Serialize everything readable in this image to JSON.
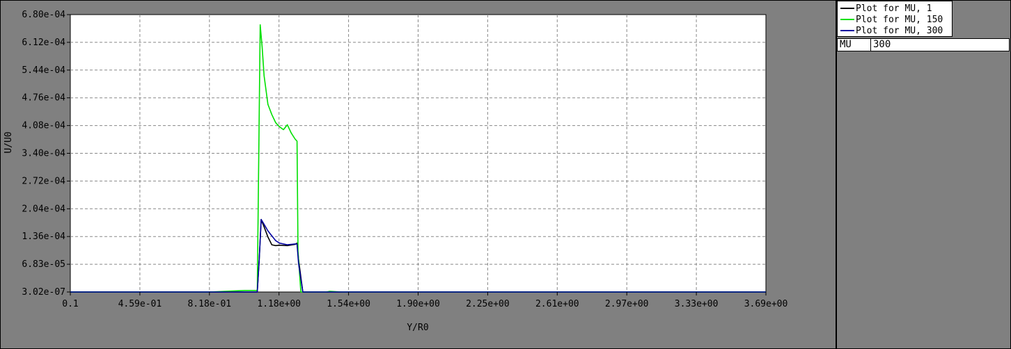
{
  "chart_data": {
    "type": "line",
    "xlabel": "Y/R0",
    "ylabel": "U/U0",
    "xlim": [
      0.1,
      3.69
    ],
    "ylim": [
      3.02e-07,
      0.00068
    ],
    "grid": true,
    "legend_position": "outside-top-right",
    "x_tick_labels": [
      "0.1",
      "4.59e-01",
      "8.18e-01",
      "1.18e+00",
      "1.54e+00",
      "1.90e+00",
      "2.25e+00",
      "2.61e+00",
      "2.97e+00",
      "3.33e+00",
      "3.69e+00"
    ],
    "y_tick_labels": [
      "6.80e-04",
      "6.12e-04",
      "5.44e-04",
      "4.76e-04",
      "4.08e-04",
      "3.40e-04",
      "2.72e-04",
      "2.04e-04",
      "1.36e-04",
      "6.83e-05",
      "3.02e-07"
    ],
    "series": [
      {
        "name": "Plot for MU, 1",
        "color": "#000000",
        "x": [
          0.1,
          0.82,
          1.065,
          1.075,
          1.085,
          1.1,
          1.12,
          1.14,
          1.16,
          1.18,
          1.22,
          1.26,
          1.27,
          1.278,
          1.3,
          1.44,
          3.69
        ],
        "y": [
          3.02e-07,
          3.02e-07,
          3.02e-07,
          8e-05,
          0.000178,
          0.00016,
          0.000135,
          0.000116,
          0.000114,
          0.000115,
          0.000114,
          0.000117,
          0.00012,
          8e-05,
          3.02e-07,
          3.02e-07,
          3.02e-07
        ]
      },
      {
        "name": "Plot for MU, 150",
        "color": "#00e000",
        "x": [
          0.1,
          0.82,
          1.0,
          1.065,
          1.073,
          1.08,
          1.09,
          1.1,
          1.12,
          1.14,
          1.16,
          1.18,
          1.2,
          1.22,
          1.24,
          1.26,
          1.27,
          1.275,
          1.29,
          1.42,
          1.44,
          1.5,
          3.69
        ],
        "y": [
          3.02e-07,
          3.02e-07,
          4e-06,
          4e-06,
          0.00036,
          0.000655,
          0.0006,
          0.00053,
          0.00046,
          0.000435,
          0.000415,
          0.000405,
          0.000398,
          0.00041,
          0.00039,
          0.000375,
          0.00037,
          0.0001,
          3.02e-07,
          3.02e-07,
          2e-06,
          3.02e-07,
          3.02e-07
        ]
      },
      {
        "name": "Plot for MU, 300",
        "color": "#0000a0",
        "x": [
          0.1,
          0.82,
          1.065,
          1.075,
          1.085,
          1.1,
          1.12,
          1.14,
          1.16,
          1.18,
          1.22,
          1.26,
          1.27,
          1.278,
          1.3,
          1.44,
          3.69
        ],
        "y": [
          3.02e-07,
          3.02e-07,
          3.02e-07,
          8e-05,
          0.000178,
          0.000166,
          0.00015,
          0.000138,
          0.000126,
          0.00012,
          0.000116,
          0.000118,
          0.000118,
          7e-05,
          3.02e-07,
          3.02e-07,
          3.02e-07
        ]
      }
    ]
  },
  "parameter": {
    "label": "MU",
    "value": "300"
  }
}
